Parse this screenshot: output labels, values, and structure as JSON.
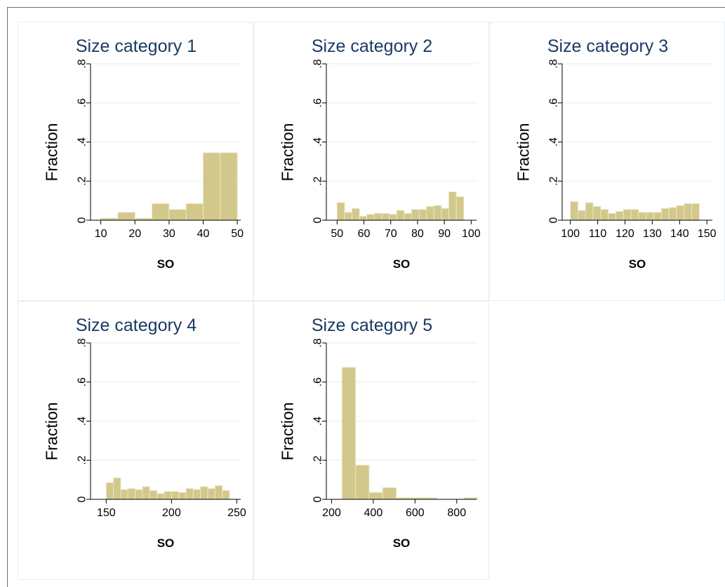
{
  "chart_data": [
    {
      "type": "bar",
      "title": "Size category 1",
      "xlabel": "SO",
      "ylabel": "Fraction",
      "xlim": [
        7,
        51
      ],
      "ylim": [
        0,
        0.8
      ],
      "xticks": [
        10,
        20,
        30,
        40,
        50
      ],
      "xtick_labels": [
        "10",
        "20",
        "30",
        "40",
        "50"
      ],
      "yticks": [
        0,
        0.2,
        0.4,
        0.6,
        0.8
      ],
      "ytick_labels": [
        "0",
        ".2",
        ".4",
        ".6",
        ".8"
      ],
      "bins": [
        [
          10,
          15
        ],
        [
          15,
          20
        ],
        [
          20,
          25
        ],
        [
          25,
          30
        ],
        [
          30,
          35
        ],
        [
          35,
          40
        ],
        [
          40,
          45
        ],
        [
          45,
          50
        ]
      ],
      "values": [
        0.01,
        0.04,
        0.01,
        0.085,
        0.055,
        0.085,
        0.345,
        0.345
      ]
    },
    {
      "type": "bar",
      "title": "Size category 2",
      "xlabel": "SO",
      "ylabel": "Fraction",
      "xlim": [
        46,
        102
      ],
      "ylim": [
        0,
        0.8
      ],
      "xticks": [
        50,
        60,
        70,
        80,
        90,
        100
      ],
      "xtick_labels": [
        "50",
        "60",
        "70",
        "80",
        "90",
        "100"
      ],
      "yticks": [
        0,
        0.2,
        0.4,
        0.6,
        0.8
      ],
      "ytick_labels": [
        "0",
        ".2",
        ".4",
        ".6",
        ".8"
      ],
      "bins": [
        [
          50,
          52.78
        ],
        [
          52.78,
          55.56
        ],
        [
          55.56,
          58.33
        ],
        [
          58.33,
          61.11
        ],
        [
          61.11,
          63.89
        ],
        [
          63.89,
          66.67
        ],
        [
          66.67,
          69.44
        ],
        [
          69.44,
          72.22
        ],
        [
          72.22,
          75
        ],
        [
          75,
          77.78
        ],
        [
          77.78,
          80.56
        ],
        [
          80.56,
          83.33
        ],
        [
          83.33,
          86.11
        ],
        [
          86.11,
          88.89
        ],
        [
          88.89,
          91.67
        ],
        [
          91.67,
          94.44
        ],
        [
          94.44,
          97.22
        ],
        [
          97.22,
          100
        ]
      ],
      "values": [
        0.09,
        0.04,
        0.06,
        0.02,
        0.03,
        0.035,
        0.035,
        0.03,
        0.05,
        0.035,
        0.055,
        0.055,
        0.07,
        0.075,
        0.06,
        0.145,
        0.12,
        0.0
      ]
    },
    {
      "type": "bar",
      "title": "Size category 3",
      "xlabel": "SO",
      "ylabel": "Fraction",
      "xlim": [
        97,
        152
      ],
      "ylim": [
        0,
        0.8
      ],
      "xticks": [
        100,
        110,
        120,
        130,
        140,
        150
      ],
      "xtick_labels": [
        "100",
        "110",
        "120",
        "130",
        "140",
        "150"
      ],
      "yticks": [
        0,
        0.2,
        0.4,
        0.6,
        0.8
      ],
      "ytick_labels": [
        "0",
        ".2",
        ".4",
        ".6",
        ".8"
      ],
      "bins": [
        [
          100,
          102.78
        ],
        [
          102.78,
          105.56
        ],
        [
          105.56,
          108.33
        ],
        [
          108.33,
          111.11
        ],
        [
          111.11,
          113.89
        ],
        [
          113.89,
          116.67
        ],
        [
          116.67,
          119.44
        ],
        [
          119.44,
          122.22
        ],
        [
          122.22,
          125
        ],
        [
          125,
          127.78
        ],
        [
          127.78,
          130.56
        ],
        [
          130.56,
          133.33
        ],
        [
          133.33,
          136.11
        ],
        [
          136.11,
          138.89
        ],
        [
          138.89,
          141.67
        ],
        [
          141.67,
          144.44
        ],
        [
          144.44,
          147.22
        ],
        [
          147.22,
          150
        ]
      ],
      "values": [
        0.095,
        0.05,
        0.09,
        0.07,
        0.055,
        0.035,
        0.045,
        0.055,
        0.055,
        0.04,
        0.04,
        0.04,
        0.06,
        0.065,
        0.075,
        0.085,
        0.085,
        0.0
      ]
    },
    {
      "type": "bar",
      "title": "Size category 4",
      "xlabel": "SO",
      "ylabel": "Fraction",
      "xlim": [
        138,
        253
      ],
      "ylim": [
        0,
        0.8
      ],
      "xticks": [
        150,
        200,
        250
      ],
      "xtick_labels": [
        "150",
        "200",
        "250"
      ],
      "yticks": [
        0,
        0.2,
        0.4,
        0.6,
        0.8
      ],
      "ytick_labels": [
        "0",
        ".2",
        ".4",
        ".6",
        ".8"
      ],
      "bins": [
        [
          150,
          155.56
        ],
        [
          155.56,
          161.11
        ],
        [
          161.11,
          166.67
        ],
        [
          166.67,
          172.22
        ],
        [
          172.22,
          177.78
        ],
        [
          177.78,
          183.33
        ],
        [
          183.33,
          188.89
        ],
        [
          188.89,
          194.44
        ],
        [
          194.44,
          200
        ],
        [
          200,
          205.56
        ],
        [
          205.56,
          211.11
        ],
        [
          211.11,
          216.67
        ],
        [
          216.67,
          222.22
        ],
        [
          222.22,
          227.78
        ],
        [
          227.78,
          233.33
        ],
        [
          233.33,
          238.89
        ],
        [
          238.89,
          244.44
        ],
        [
          244.44,
          250
        ]
      ],
      "values": [
        0.085,
        0.11,
        0.05,
        0.055,
        0.05,
        0.065,
        0.045,
        0.03,
        0.04,
        0.04,
        0.035,
        0.055,
        0.05,
        0.065,
        0.055,
        0.07,
        0.045,
        0.0
      ]
    },
    {
      "type": "bar",
      "title": "Size category 5",
      "xlabel": "SO",
      "ylabel": "Fraction",
      "xlim": [
        175,
        895
      ],
      "ylim": [
        0,
        0.8
      ],
      "xticks": [
        200,
        400,
        600,
        800
      ],
      "xtick_labels": [
        "200",
        "400",
        "600",
        "800"
      ],
      "yticks": [
        0,
        0.2,
        0.4,
        0.6,
        0.8
      ],
      "ytick_labels": [
        "0",
        ".2",
        ".4",
        ".6",
        ".8"
      ],
      "bins": [
        [
          250,
          315
        ],
        [
          315,
          380
        ],
        [
          380,
          445
        ],
        [
          445,
          510
        ],
        [
          510,
          575
        ],
        [
          575,
          640
        ],
        [
          640,
          705
        ],
        [
          705,
          770
        ],
        [
          770,
          835
        ],
        [
          835,
          900
        ]
      ],
      "values": [
        0.675,
        0.175,
        0.035,
        0.06,
        0.008,
        0.008,
        0.008,
        0.0,
        0.0,
        0.008
      ]
    }
  ]
}
